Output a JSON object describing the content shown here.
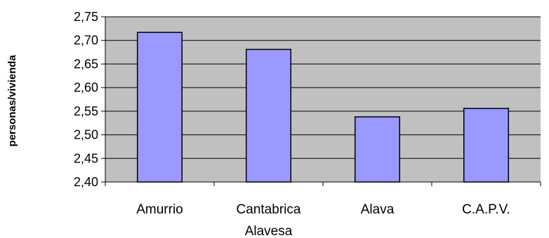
{
  "chart_data": {
    "type": "bar",
    "title": "",
    "xlabel": "",
    "ylabel": "personas/vivienda",
    "categories": [
      [
        "Amurrio"
      ],
      [
        "Cantabrica",
        "Alavesa"
      ],
      [
        "Alava"
      ],
      [
        "C.A.P.V."
      ]
    ],
    "values": [
      2.717,
      2.681,
      2.538,
      2.556
    ],
    "ylim": [
      2.4,
      2.75
    ],
    "yticks": [
      "2,40",
      "2,45",
      "2,50",
      "2,55",
      "2,60",
      "2,65",
      "2,70",
      "2,75"
    ],
    "grid": true,
    "legend": "none",
    "colors": {
      "plot_background": "#c0c0c0",
      "bar_fill": "#9999ff",
      "bar_stroke": "#000000",
      "gridline": "#000000"
    }
  }
}
